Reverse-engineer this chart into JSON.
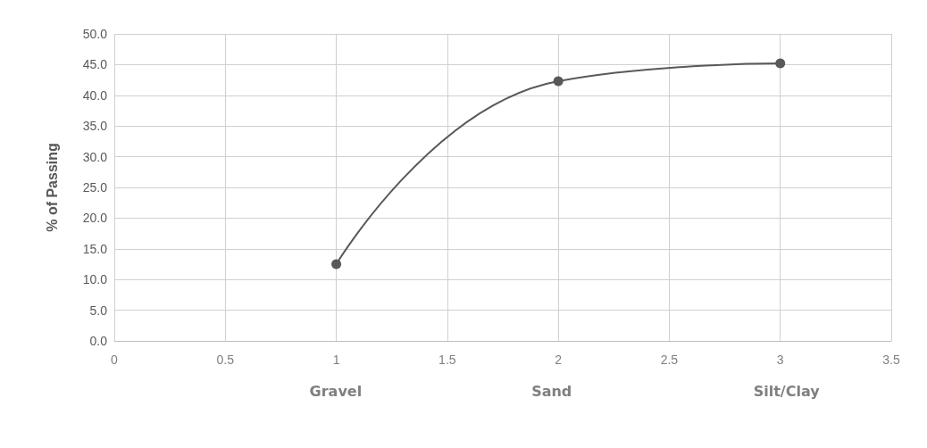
{
  "chart_data": {
    "type": "line",
    "ylabel": "% of Passing",
    "x": [
      1,
      2,
      3
    ],
    "series": [
      {
        "color": "#595959",
        "values": [
          12.5,
          42.3,
          45.2
        ]
      }
    ],
    "xlim": [
      0,
      3.5
    ],
    "xticks": [
      0,
      0.5,
      1,
      1.5,
      2,
      2.5,
      3,
      3.5
    ],
    "ylim": [
      0,
      50
    ],
    "yticks": [
      {
        "value": 0,
        "label": "0.0"
      },
      {
        "value": 5,
        "label": "5.0"
      },
      {
        "value": 10,
        "label": "10.0"
      },
      {
        "value": 15,
        "label": "15.0"
      },
      {
        "value": 20,
        "label": "20.0"
      },
      {
        "value": 25,
        "label": "25.0"
      },
      {
        "value": 30,
        "label": "30.0"
      },
      {
        "value": 35,
        "label": "35.0"
      },
      {
        "value": 40,
        "label": "40.0"
      },
      {
        "value": 45,
        "label": "45.0"
      },
      {
        "value": 50,
        "label": "50.0"
      }
    ],
    "annotations": [
      "Gravel",
      "Sand",
      "Silt/Clay"
    ],
    "grid": true,
    "marker": "circle",
    "line_style": "solid"
  }
}
